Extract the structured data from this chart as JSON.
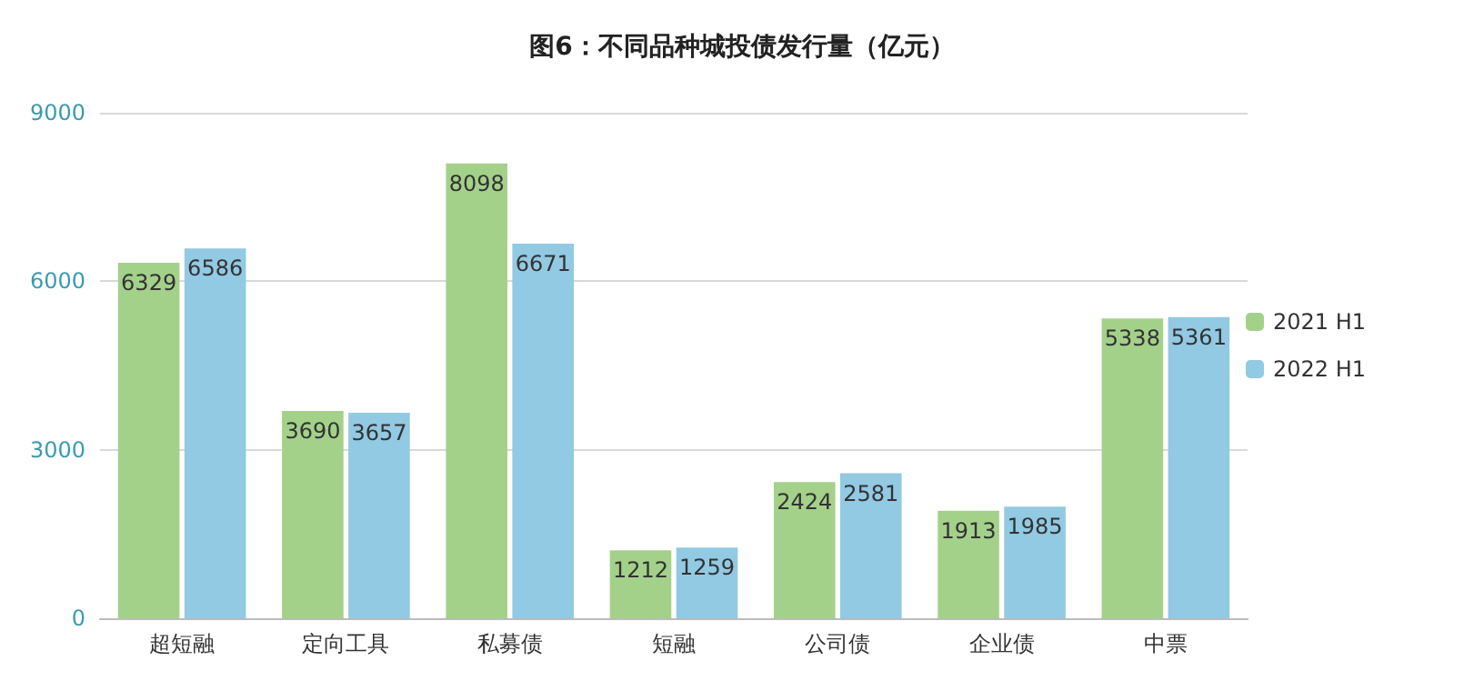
{
  "chart_data": {
    "type": "bar",
    "title": "图6：不同品种城投债发行量（亿元）",
    "categories": [
      "超短融",
      "定向工具",
      "私募债",
      "短融",
      "公司债",
      "企业债",
      "中票"
    ],
    "series": [
      {
        "name": "2021 H1",
        "color": "#a3d18a",
        "values": [
          6329,
          3690,
          8098,
          1212,
          2424,
          1913,
          5338
        ]
      },
      {
        "name": "2022 H1",
        "color": "#92c9e3",
        "values": [
          6586,
          3657,
          6671,
          1259,
          2581,
          1985,
          5361
        ]
      }
    ],
    "ylim": [
      0,
      9000
    ],
    "yticks": [
      0,
      3000,
      6000,
      9000
    ],
    "grid": "y",
    "legend": "right",
    "data_labels": true
  }
}
